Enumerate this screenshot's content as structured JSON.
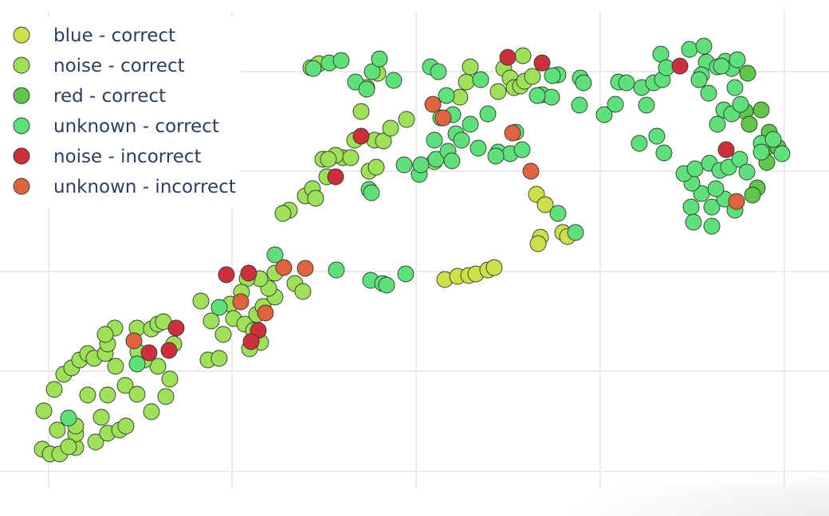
{
  "chart_data": {
    "type": "scatter",
    "title": "",
    "xlabel": "",
    "ylabel": "",
    "grid": true,
    "legend_position": "top-left",
    "series": [
      {
        "name": "blue - correct",
        "color": "#cde04a",
        "points": [
          [
            673,
            244
          ],
          [
            684,
            257
          ],
          [
            678,
            298
          ],
          [
            675,
            306
          ],
          [
            706,
            292
          ],
          [
            712,
            297
          ],
          [
            558,
            351
          ],
          [
            574,
            347
          ],
          [
            588,
            346
          ],
          [
            597,
            344
          ],
          [
            612,
            339
          ],
          [
            620,
            336
          ]
        ]
      },
      {
        "name": "noise - correct",
        "color": "#9ee057",
        "points": [
          [
            53,
            564
          ],
          [
            63,
            570
          ],
          [
            75,
            570
          ],
          [
            95,
            562
          ],
          [
            120,
            555
          ],
          [
            135,
            544
          ],
          [
            150,
            540
          ],
          [
            158,
            535
          ],
          [
            72,
            540
          ],
          [
            95,
            545
          ],
          [
            55,
            516
          ],
          [
            68,
            489
          ],
          [
            80,
            470
          ],
          [
            90,
            462
          ],
          [
            100,
            452
          ],
          [
            110,
            444
          ],
          [
            118,
            450
          ],
          [
            132,
            444
          ],
          [
            135,
            432
          ],
          [
            145,
            460
          ],
          [
            157,
            484
          ],
          [
            172,
            495
          ],
          [
            190,
            517
          ],
          [
            208,
            498
          ],
          [
            213,
            476
          ],
          [
            198,
            460
          ],
          [
            181,
            452
          ],
          [
            173,
            442
          ],
          [
            172,
            412
          ],
          [
            190,
            413
          ],
          [
            198,
            407
          ],
          [
            205,
            404
          ],
          [
            218,
            432
          ],
          [
            144,
            412
          ],
          [
            132,
            420
          ],
          [
            110,
            496
          ],
          [
            135,
            496
          ],
          [
            127,
            524
          ],
          [
            95,
            535
          ],
          [
            86,
            561
          ],
          [
            261,
            452
          ],
          [
            275,
            450
          ],
          [
            280,
            420
          ],
          [
            265,
            403
          ],
          [
            252,
            378
          ],
          [
            289,
            382
          ],
          [
            293,
            400
          ],
          [
            307,
            407
          ],
          [
            318,
            415
          ],
          [
            322,
            395
          ],
          [
            330,
            385
          ],
          [
            345,
            373
          ],
          [
            337,
            362
          ],
          [
            345,
            343
          ],
          [
            326,
            350
          ],
          [
            310,
            350
          ],
          [
            303,
            367
          ],
          [
            327,
            430
          ],
          [
            313,
            438
          ],
          [
            370,
            356
          ],
          [
            380,
            366
          ],
          [
            430,
            198
          ],
          [
            421,
            195
          ],
          [
            405,
            200
          ],
          [
            410,
            222
          ],
          [
            440,
            198
          ],
          [
            463,
            215
          ],
          [
            472,
            210
          ],
          [
            445,
            176
          ],
          [
            470,
            176
          ],
          [
            481,
            177
          ],
          [
            490,
            161
          ],
          [
            510,
            150
          ],
          [
            545,
            203
          ],
          [
            577,
            122
          ],
          [
            585,
            103
          ],
          [
            590,
            84
          ],
          [
            625,
            115
          ],
          [
            632,
            86
          ],
          [
            640,
            98
          ],
          [
            645,
            110
          ],
          [
            653,
            108
          ],
          [
            658,
            102
          ],
          [
            668,
            96
          ],
          [
            656,
            70
          ],
          [
            363,
            264
          ],
          [
            355,
            268
          ],
          [
            383,
            246
          ],
          [
            392,
            237
          ],
          [
            396,
            249
          ],
          [
            412,
            200
          ],
          [
            453,
            140
          ],
          [
            460,
            110
          ],
          [
            474,
            92
          ],
          [
            390,
            85
          ],
          [
            400,
            80
          ]
        ]
      },
      {
        "name": "red - correct",
        "color": "#5fc74a",
        "points": [
          [
            938,
            92
          ],
          [
            955,
            138
          ],
          [
            965,
            166
          ],
          [
            962,
            185
          ],
          [
            976,
            185
          ],
          [
            950,
            236
          ],
          [
            944,
            245
          ],
          [
            962,
            204
          ],
          [
            935,
            140
          ],
          [
            940,
            156
          ]
        ]
      },
      {
        "name": "unknown - correct",
        "color": "#5ee07a",
        "points": [
          [
            86,
            525
          ],
          [
            172,
            457
          ],
          [
            275,
            386
          ],
          [
            345,
            320
          ],
          [
            422,
            339
          ],
          [
            465,
            352
          ],
          [
            480,
            356
          ],
          [
            485,
            358
          ],
          [
            509,
            344
          ],
          [
            700,
            268
          ],
          [
            722,
            292
          ],
          [
            393,
            86
          ],
          [
            413,
            79
          ],
          [
            428,
            76
          ],
          [
            446,
            103
          ],
          [
            460,
            112
          ],
          [
            467,
            90
          ],
          [
            476,
            74
          ],
          [
            494,
            101
          ],
          [
            540,
            84
          ],
          [
            550,
            90
          ],
          [
            560,
            120
          ],
          [
            568,
            144
          ],
          [
            553,
            148
          ],
          [
            572,
            168
          ],
          [
            579,
            176
          ],
          [
            590,
            156
          ],
          [
            603,
            100
          ],
          [
            612,
            143
          ],
          [
            600,
            186
          ],
          [
            625,
            191
          ],
          [
            640,
            193
          ],
          [
            655,
            188
          ],
          [
            622,
            196
          ],
          [
            647,
            166
          ],
          [
            680,
            119
          ],
          [
            692,
            122
          ],
          [
            700,
            94
          ],
          [
            674,
            120
          ],
          [
            693,
            95
          ],
          [
            728,
            98
          ],
          [
            732,
            104
          ],
          [
            727,
            132
          ],
          [
            758,
            144
          ],
          [
            772,
            131
          ],
          [
            776,
            103
          ],
          [
            786,
            104
          ],
          [
            805,
            110
          ],
          [
            820,
            104
          ],
          [
            831,
            100
          ],
          [
            811,
            132
          ],
          [
            802,
            180
          ],
          [
            824,
            171
          ],
          [
            833,
            192
          ],
          [
            829,
            68
          ],
          [
            836,
            85
          ],
          [
            865,
            62
          ],
          [
            883,
            58
          ],
          [
            886,
            78
          ],
          [
            900,
            84
          ],
          [
            910,
            77
          ],
          [
            918,
            86
          ],
          [
            925,
            75
          ],
          [
            880,
            94
          ],
          [
            877,
            100
          ],
          [
            889,
            117
          ],
          [
            905,
            83
          ],
          [
            922,
            110
          ],
          [
            908,
            138
          ],
          [
            918,
            143
          ],
          [
            929,
            131
          ],
          [
            900,
            156
          ],
          [
            867,
            260
          ],
          [
            870,
            279
          ],
          [
            880,
            243
          ],
          [
            893,
            260
          ],
          [
            893,
            284
          ],
          [
            909,
            250
          ],
          [
            922,
            264
          ],
          [
            898,
            237
          ],
          [
            868,
            230
          ],
          [
            858,
            218
          ],
          [
            872,
            212
          ],
          [
            890,
            205
          ],
          [
            903,
            214
          ],
          [
            914,
            210
          ],
          [
            928,
            200
          ],
          [
            937,
            216
          ],
          [
            955,
            180
          ],
          [
            970,
            175
          ],
          [
            955,
            191
          ],
          [
            981,
            193
          ],
          [
            526,
            219
          ],
          [
            528,
            207
          ],
          [
            547,
            200
          ],
          [
            562,
            190
          ],
          [
            567,
            202
          ],
          [
            507,
            207
          ],
          [
            545,
            176
          ],
          [
            463,
            238
          ],
          [
            466,
            242
          ]
        ]
      },
      {
        "name": "noise - incorrect",
        "color": "#cc303c",
        "points": [
          [
            187,
            443
          ],
          [
            212,
            440
          ],
          [
            221,
            412
          ],
          [
            284,
            345
          ],
          [
            312,
            343
          ],
          [
            324,
            415
          ],
          [
            315,
            429
          ],
          [
            421,
            222
          ],
          [
            453,
            171
          ],
          [
            637,
            72
          ],
          [
            680,
            79
          ],
          [
            853,
            83
          ],
          [
            911,
            188
          ]
        ]
      },
      {
        "name": "unknown - incorrect",
        "color": "#e06340",
        "points": [
          [
            168,
            428
          ],
          [
            302,
            379
          ],
          [
            333,
            393
          ],
          [
            356,
            336
          ],
          [
            383,
            337
          ],
          [
            543,
            131
          ],
          [
            556,
            148
          ],
          [
            643,
            167
          ],
          [
            666,
            215
          ],
          [
            924,
            253
          ]
        ]
      }
    ]
  }
}
